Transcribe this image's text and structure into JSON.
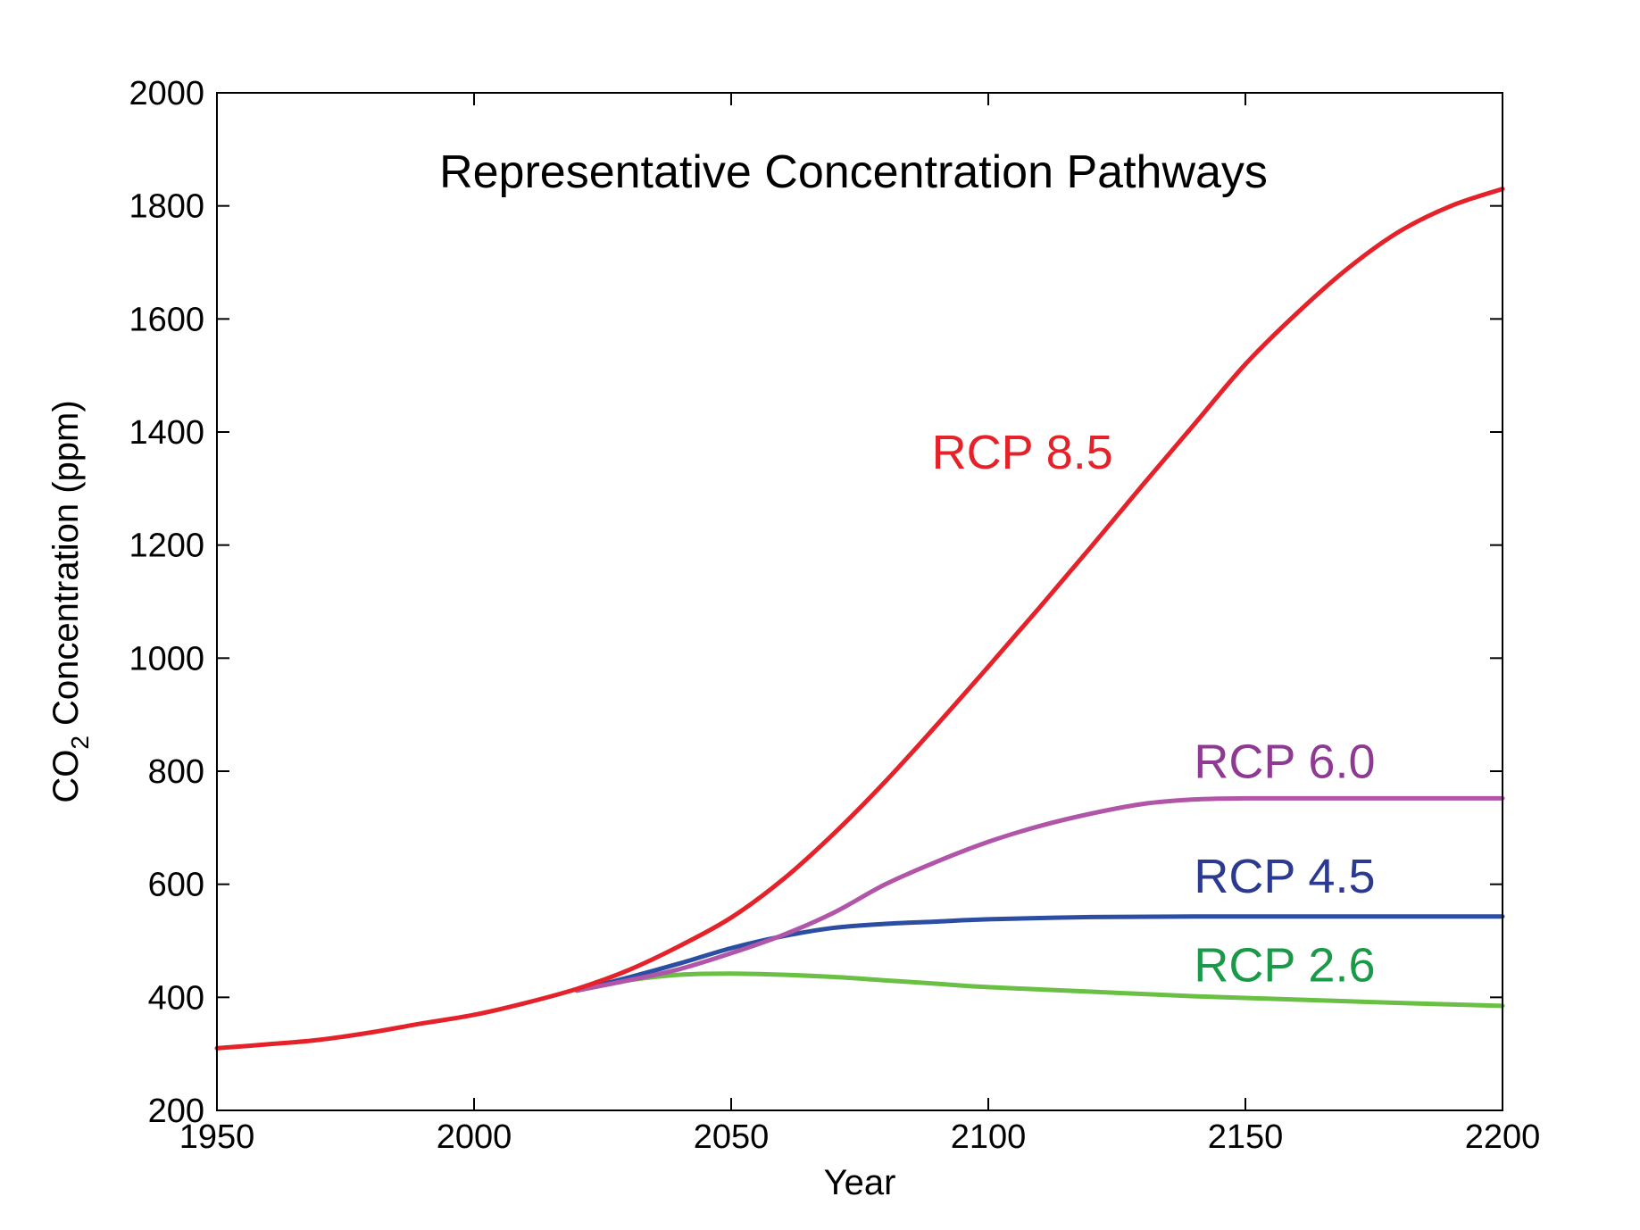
{
  "chart_data": {
    "type": "line",
    "title": "Representative Concentration Pathways",
    "xlabel": "Year",
    "ylabel": {
      "prefix": "CO",
      "subscript": "2",
      "suffix": " Concentration (ppm)"
    },
    "xlim": [
      1950,
      2200
    ],
    "ylim": [
      200,
      2000
    ],
    "xticks": [
      1950,
      2000,
      2050,
      2100,
      2150,
      2200
    ],
    "yticks": [
      200,
      400,
      600,
      800,
      1000,
      1200,
      1400,
      1600,
      1800,
      2000
    ],
    "grid": false,
    "legend": "inline labels",
    "series": [
      {
        "name": "RCP 2.6",
        "color": "#6abf45",
        "label_color": "#1a9a48",
        "label_at": [
          2140,
          428
        ],
        "x": [
          2020,
          2030,
          2040,
          2050,
          2060,
          2070,
          2080,
          2090,
          2100,
          2120,
          2140,
          2160,
          2180,
          2200
        ],
        "y": [
          412,
          430,
          440,
          442,
          440,
          436,
          430,
          424,
          418,
          410,
          402,
          396,
          390,
          385
        ]
      },
      {
        "name": "RCP 4.5",
        "color": "#2b4ea2",
        "label_color": "#2b3990",
        "label_at": [
          2140,
          585
        ],
        "x": [
          2020,
          2030,
          2040,
          2050,
          2060,
          2070,
          2080,
          2090,
          2100,
          2120,
          2140,
          2160,
          2180,
          2200
        ],
        "y": [
          412,
          435,
          460,
          487,
          508,
          523,
          530,
          534,
          538,
          542,
          543,
          543,
          543,
          543
        ]
      },
      {
        "name": "RCP 6.0",
        "color": "#b155a8",
        "label_color": "#8e3a93",
        "label_at": [
          2140,
          788
        ],
        "x": [
          2020,
          2030,
          2040,
          2050,
          2060,
          2070,
          2080,
          2090,
          2100,
          2110,
          2120,
          2130,
          2140,
          2150,
          2160,
          2180,
          2200
        ],
        "y": [
          412,
          430,
          450,
          478,
          510,
          550,
          600,
          640,
          675,
          703,
          725,
          742,
          750,
          752,
          752,
          752,
          752
        ]
      },
      {
        "name": "RCP 8.5",
        "color": "#e5222a",
        "label_color": "#e5222a",
        "label_at": [
          2089,
          1335
        ],
        "x": [
          1950,
          1960,
          1970,
          1980,
          1990,
          2000,
          2010,
          2020,
          2030,
          2040,
          2050,
          2060,
          2070,
          2080,
          2090,
          2100,
          2110,
          2120,
          2130,
          2140,
          2150,
          2160,
          2170,
          2180,
          2190,
          2200
        ],
        "y": [
          310,
          317,
          325,
          338,
          354,
          369,
          390,
          415,
          448,
          491,
          541,
          608,
          690,
          782,
          882,
          985,
          1090,
          1197,
          1306,
          1413,
          1520,
          1610,
          1690,
          1755,
          1800,
          1830
        ]
      }
    ]
  }
}
